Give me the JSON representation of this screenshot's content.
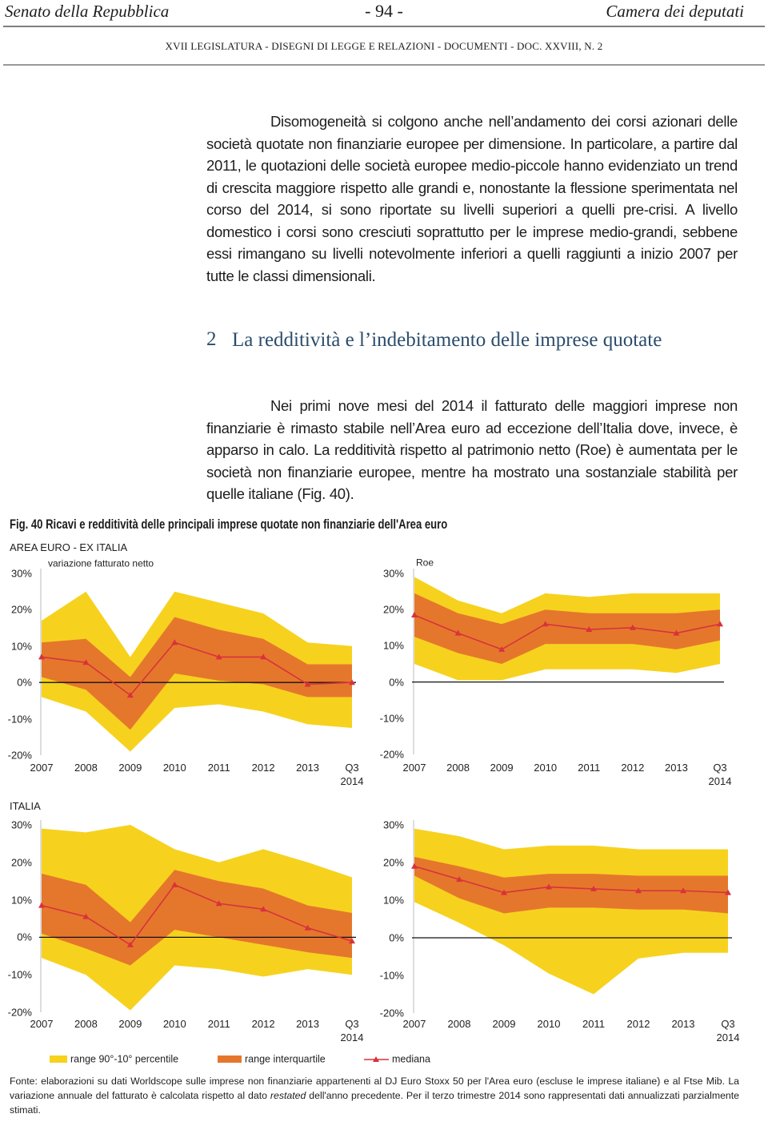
{
  "header": {
    "left": "Senato della Repubblica",
    "center": "- 94 -",
    "right": "Camera dei deputati",
    "subtitle": "XVII LEGISLATURA - DISEGNI DI LEGGE E RELAZIONI - DOCUMENTI - DOC. XXVIII, N. 2"
  },
  "paragraphs": [
    "Disomogeneità si colgono anche nell’andamento dei corsi azionari delle società quotate non finanziarie europee per dimensione. In particolare, a partire dal 2011, le quotazioni delle società europee medio-piccole hanno evidenziato un trend di crescita maggiore rispetto alle grandi e, nonostante la flessione sperimentata nel corso del 2014, si sono riportate su livelli superiori a quelli pre-crisi. A livello domestico i corsi sono cresciuti soprattutto per le imprese medio-grandi, sebbene essi rimangano su livelli notevolmente inferiori a quelli raggiunti a inizio 2007 per tutte le classi dimensionali.",
    "Nei primi nove mesi del 2014 il fatturato delle maggiori imprese non finanziarie è rimasto stabile nell’Area euro ad eccezione dell’Italia dove, invece, è apparso in calo. La redditività rispetto al patrimonio netto (Roe) è aumentata per le società non finanziarie europee, mentre ha mostrato una sostanziale stabilità per quelle italiane (Fig. 40)."
  ],
  "section": {
    "number": "2",
    "title": "La redditività e l’indebitamento delle imprese quotate"
  },
  "figure": {
    "caption": "Fig. 40 Ricavi e redditività delle principali imprese quotate non finanziarie dell'Area euro",
    "row_labels": [
      "AREA EURO - EX ITALIA",
      "ITALIA"
    ],
    "legend": [
      {
        "label": "range 90°-10° percentile",
        "color": "#f6d21e"
      },
      {
        "label": "range interquartile",
        "color": "#e5772c"
      },
      {
        "label": "mediana",
        "color": "#d8323c"
      }
    ],
    "source": {
      "text_1": "Fonte: elaborazioni su dati Worldscope sulle imprese non finanziarie appartenenti al DJ Euro Stoxx 50 per l'Area euro (escluse le imprese italiane) e al Ftse Mib. La variazione annuale del fatturato è calcolata rispetto al dato",
      "emphasis": "restated",
      "text_2": "dell'anno precedente. Per il terzo trimestre 2014 sono rappresentati dati annualizzati parzialmente stimati."
    }
  },
  "chart_data": [
    {
      "type": "band",
      "title": "variazione fatturato netto",
      "categories": [
        "2007",
        "2008",
        "2009",
        "2010",
        "2011",
        "2012",
        "2013",
        "Q3\n2014"
      ],
      "p90": [
        17,
        25,
        7,
        25,
        22,
        19,
        11,
        10
      ],
      "p75": [
        11,
        12,
        1.5,
        18,
        14.5,
        12,
        5,
        5
      ],
      "median": [
        7,
        5.5,
        -3.5,
        11,
        7,
        7,
        -0.5,
        0
      ],
      "p25": [
        1.5,
        -2,
        -13,
        2.5,
        0.5,
        -0.5,
        -4,
        -4
      ],
      "p10": [
        -4,
        -8,
        -19,
        -7,
        -6,
        -8,
        -11.5,
        -12.5
      ],
      "ylim": [
        -20,
        30
      ],
      "yticks": [
        {
          "value": 30,
          "label": "30%"
        },
        {
          "value": 20,
          "label": "20%"
        },
        {
          "value": 10,
          "label": "10%"
        },
        {
          "value": 0,
          "label": "0%"
        },
        {
          "value": -10,
          "label": "-10%"
        },
        {
          "value": -20,
          "label": "-20%"
        }
      ],
      "zero_line": true
    },
    {
      "type": "band",
      "title": "Roe",
      "categories": [
        "2007",
        "2008",
        "2009",
        "2010",
        "2011",
        "2012",
        "2013",
        "Q3\n2014"
      ],
      "p90": [
        29,
        22.5,
        19,
        24.5,
        23.5,
        24.5,
        24.5,
        24.5
      ],
      "p75": [
        24.5,
        19,
        16,
        20,
        19,
        19,
        19,
        20
      ],
      "median": [
        18.5,
        13.5,
        9,
        16,
        14.5,
        15,
        13.5,
        16
      ],
      "p25": [
        12.5,
        8,
        5,
        10.5,
        10.5,
        10.5,
        9,
        11.5
      ],
      "p10": [
        5,
        0.5,
        0.5,
        3.5,
        3.5,
        3.5,
        2.5,
        5
      ],
      "ylim": [
        -20,
        30
      ],
      "yticks": [
        {
          "value": 30,
          "label": "30%"
        },
        {
          "value": 20,
          "label": "20%"
        },
        {
          "value": 10,
          "label": "10%"
        },
        {
          "value": 0,
          "label": "0%"
        },
        {
          "value": -10,
          "label": "-10%"
        },
        {
          "value": -20,
          "label": "-20%"
        }
      ],
      "zero_line": true
    },
    {
      "type": "band",
      "categories": [
        "2007",
        "2008",
        "2009",
        "2010",
        "2011",
        "2012",
        "2013",
        "Q3\n2014"
      ],
      "p90": [
        29,
        28,
        30,
        23.5,
        20,
        23.5,
        20,
        16
      ],
      "p75": [
        17,
        14,
        4,
        18,
        15,
        13,
        8.5,
        6.5
      ],
      "median": [
        8.5,
        5.5,
        -2,
        14,
        9,
        7.5,
        2.5,
        -1
      ],
      "p25": [
        1,
        -3,
        -7.5,
        2,
        0,
        -2,
        -4,
        -5.5
      ],
      "p10": [
        -5.5,
        -10,
        -19.5,
        -7.5,
        -8.5,
        -10.5,
        -8.5,
        -10
      ],
      "ylim": [
        -20,
        30
      ],
      "yticks": [
        {
          "value": 30,
          "label": "30%"
        },
        {
          "value": 20,
          "label": "20%"
        },
        {
          "value": 10,
          "label": "10%"
        },
        {
          "value": 0,
          "label": "0%"
        },
        {
          "value": -10,
          "label": "-10%"
        },
        {
          "value": -20,
          "label": "-20%"
        }
      ],
      "zero_line": true
    },
    {
      "type": "band",
      "categories": [
        "2007",
        "2008",
        "2009",
        "2010",
        "2011",
        "2012",
        "2013",
        "Q3\n2014"
      ],
      "p90": [
        29,
        27,
        23.5,
        24.5,
        24.5,
        23.5,
        23.5,
        23.5
      ],
      "p75": [
        21.5,
        19,
        16,
        17,
        17,
        16.5,
        16.5,
        16.5
      ],
      "median": [
        19,
        15.5,
        12,
        13.5,
        13,
        12.5,
        12.5,
        12
      ],
      "p25": [
        16.5,
        10.5,
        6.5,
        8,
        8,
        7.5,
        7.5,
        6.5
      ],
      "p10": [
        9.5,
        4,
        -2,
        -9.5,
        -15,
        -5.5,
        -4,
        -4
      ],
      "ylim": [
        -20,
        30
      ],
      "yticks": [
        {
          "value": 30,
          "label": "30%"
        },
        {
          "value": 20,
          "label": "20%"
        },
        {
          "value": 10,
          "label": "10%"
        },
        {
          "value": 0,
          "label": "0%"
        },
        {
          "value": -10,
          "label": "-10%"
        },
        {
          "value": -20,
          "label": "-20%"
        }
      ],
      "zero_line": true
    }
  ]
}
